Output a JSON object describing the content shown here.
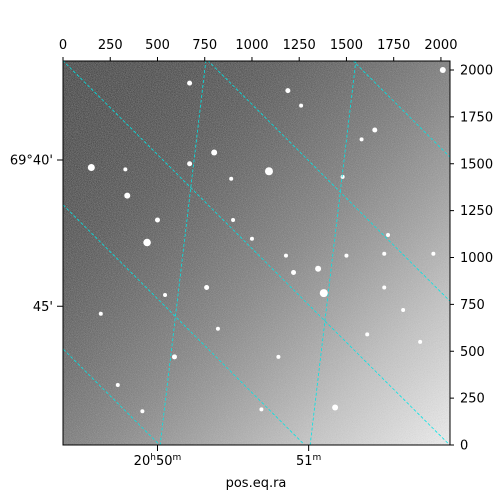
{
  "chart_data": {
    "type": "image",
    "xlabel": "pos.eq.ra",
    "ylabel": "",
    "pixel_axes": {
      "top_ticks": [
        "0",
        "250",
        "500",
        "750",
        "1000",
        "1250",
        "1500",
        "1750",
        "2000"
      ],
      "top_values": [
        0,
        250,
        500,
        750,
        1000,
        1250,
        1500,
        1750,
        2000
      ],
      "right_ticks": [
        "0",
        "250",
        "500",
        "750",
        "1000",
        "1250",
        "1500",
        "1750",
        "2000"
      ],
      "right_values": [
        0,
        250,
        500,
        750,
        1000,
        1250,
        1500,
        1750,
        2000
      ],
      "xlim": [
        0,
        2048
      ],
      "ylim": [
        0,
        2048
      ]
    },
    "world_axes": {
      "ra_ticks": [
        {
          "label": "20",
          "unit_h": "h",
          "sub": "50",
          "unit_m": "m",
          "px": 500
        },
        {
          "label": "51",
          "unit_m": "m",
          "px": 1300
        }
      ],
      "dec_ticks": [
        {
          "label": "69°40'",
          "py": 1520
        },
        {
          "label": "45'",
          "py": 740
        }
      ]
    },
    "grid": true,
    "grid_color": "#00e5e5",
    "image_gradient": "dark top-left to bright bottom-right",
    "stars": [
      {
        "x": 150,
        "y": 1480,
        "r": 3.5
      },
      {
        "x": 340,
        "y": 1330,
        "r": 3
      },
      {
        "x": 445,
        "y": 1080,
        "r": 3.8
      },
      {
        "x": 670,
        "y": 1500,
        "r": 2.5
      },
      {
        "x": 800,
        "y": 1560,
        "r": 3
      },
      {
        "x": 1090,
        "y": 1460,
        "r": 4
      },
      {
        "x": 1190,
        "y": 1890,
        "r": 2.5
      },
      {
        "x": 670,
        "y": 1930,
        "r": 2.5
      },
      {
        "x": 900,
        "y": 1200,
        "r": 2
      },
      {
        "x": 1350,
        "y": 940,
        "r": 3
      },
      {
        "x": 1380,
        "y": 810,
        "r": 4
      },
      {
        "x": 1220,
        "y": 920,
        "r": 2.5
      },
      {
        "x": 820,
        "y": 620,
        "r": 2
      },
      {
        "x": 590,
        "y": 470,
        "r": 2.5
      },
      {
        "x": 1140,
        "y": 470,
        "r": 2
      },
      {
        "x": 1500,
        "y": 1010,
        "r": 2
      },
      {
        "x": 1700,
        "y": 1020,
        "r": 2
      },
      {
        "x": 1480,
        "y": 1430,
        "r": 2
      },
      {
        "x": 2010,
        "y": 2000,
        "r": 3
      },
      {
        "x": 1650,
        "y": 1680,
        "r": 2.5
      },
      {
        "x": 1440,
        "y": 200,
        "r": 3
      },
      {
        "x": 1720,
        "y": 1120,
        "r": 2
      },
      {
        "x": 500,
        "y": 1200,
        "r": 2.5
      },
      {
        "x": 290,
        "y": 320,
        "r": 2
      },
      {
        "x": 420,
        "y": 180,
        "r": 2
      },
      {
        "x": 1800,
        "y": 720,
        "r": 2
      },
      {
        "x": 1890,
        "y": 550,
        "r": 2
      },
      {
        "x": 760,
        "y": 840,
        "r": 2.5
      },
      {
        "x": 1050,
        "y": 190,
        "r": 2
      },
      {
        "x": 1700,
        "y": 840,
        "r": 2
      },
      {
        "x": 1180,
        "y": 1010,
        "r": 2
      },
      {
        "x": 1960,
        "y": 1020,
        "r": 2
      },
      {
        "x": 1000,
        "y": 1100,
        "r": 2
      },
      {
        "x": 540,
        "y": 800,
        "r": 2
      },
      {
        "x": 200,
        "y": 700,
        "r": 2
      },
      {
        "x": 1610,
        "y": 590,
        "r": 2
      },
      {
        "x": 1260,
        "y": 1810,
        "r": 2
      },
      {
        "x": 890,
        "y": 1420,
        "r": 2
      },
      {
        "x": 1580,
        "y": 1630,
        "r": 2
      },
      {
        "x": 330,
        "y": 1470,
        "r": 2
      }
    ]
  }
}
